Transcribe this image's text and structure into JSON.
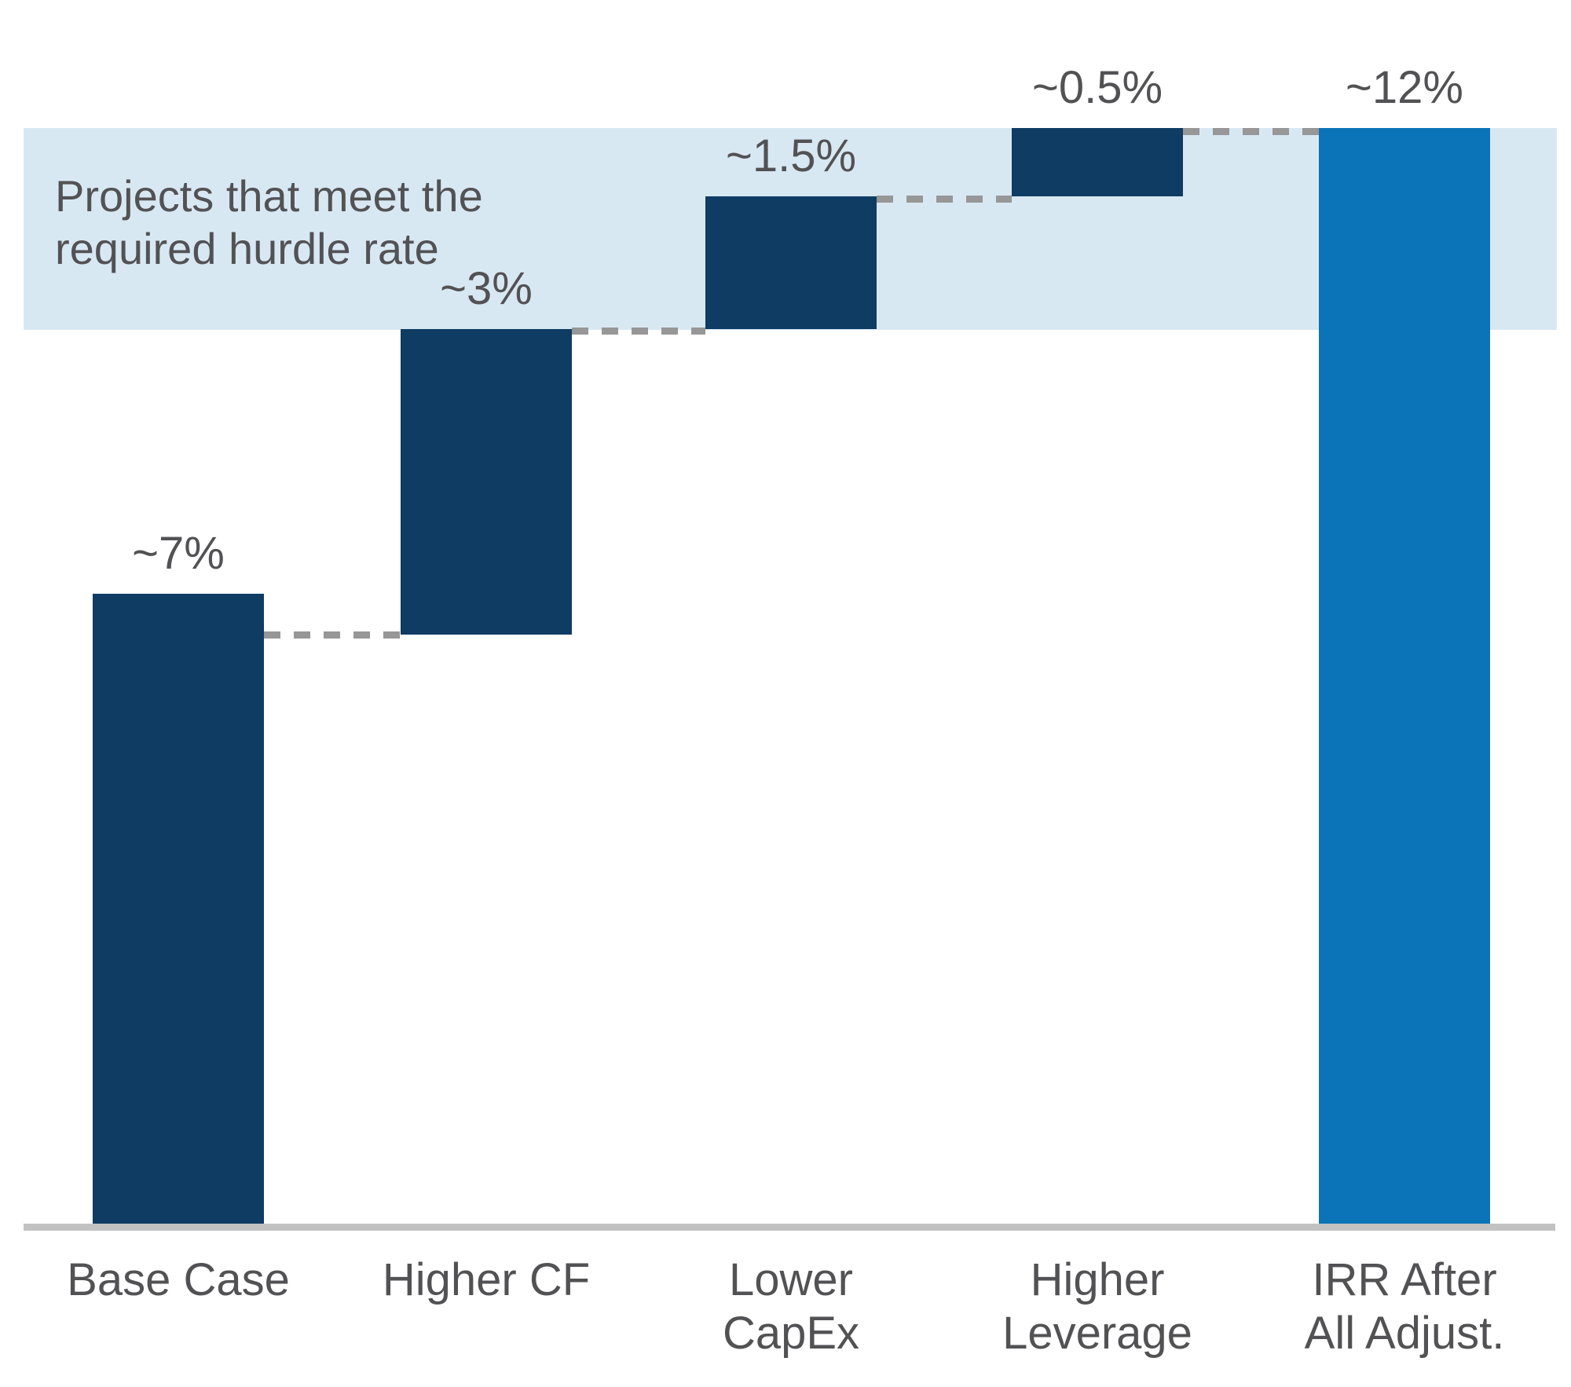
{
  "colors": {
    "navy_bar": "#0e3c63",
    "blue_bar": "#0b74b8",
    "hurdle_band": "#d8e8f3",
    "connector_gray": "#979797",
    "baseline_gray": "#c2c2c2",
    "label_gray": "#525254",
    "background": "#ffffff"
  },
  "chart_data": {
    "type": "bar",
    "subtype": "waterfall",
    "title": "",
    "unit": "%",
    "y_axis": {
      "min": 0,
      "max": 12,
      "labels_visible": false,
      "gridlines": false
    },
    "annotation_text": "Projects that meet the required hurdle rate",
    "annotation_lines": [
      "Projects that meet the",
      "required hurdle rate"
    ],
    "categories": [
      "Base Case",
      "Higher CF",
      "Lower CapEx",
      "Higher Leverage",
      "IRR After All Adjust."
    ],
    "bars": [
      {
        "category_lines": [
          "Base Case"
        ],
        "value_label": "~7%",
        "value": 7,
        "segment_start": 0,
        "segment_end": 6.9,
        "color": "navy_bar"
      },
      {
        "category_lines": [
          "Higher CF"
        ],
        "value_label": "~3%",
        "value": 3,
        "segment_start": 6.45,
        "segment_end": 9.8,
        "color": "navy_bar"
      },
      {
        "category_lines": [
          "Lower",
          "CapEx"
        ],
        "value_label": "~1.5%",
        "value": 1.5,
        "segment_start": 9.8,
        "segment_end": 11.25,
        "color": "navy_bar"
      },
      {
        "category_lines": [
          "Higher",
          "Leverage"
        ],
        "value_label": "~0.5%",
        "value": 0.5,
        "segment_start": 11.25,
        "segment_end": 12,
        "color": "navy_bar"
      },
      {
        "category_lines": [
          "IRR After",
          "All Adjust."
        ],
        "value_label": "~12%",
        "value": 12,
        "segment_start": 0,
        "segment_end": 12,
        "color": "blue_bar"
      }
    ],
    "connectors": [
      {
        "after_index": 0,
        "level": 6.45
      },
      {
        "after_index": 1,
        "level": 9.78
      },
      {
        "after_index": 2,
        "level": 11.22
      },
      {
        "after_index": 3,
        "level": 11.96
      }
    ],
    "hurdle_band": {
      "from": 9.79,
      "to": 12
    },
    "legend": null
  }
}
